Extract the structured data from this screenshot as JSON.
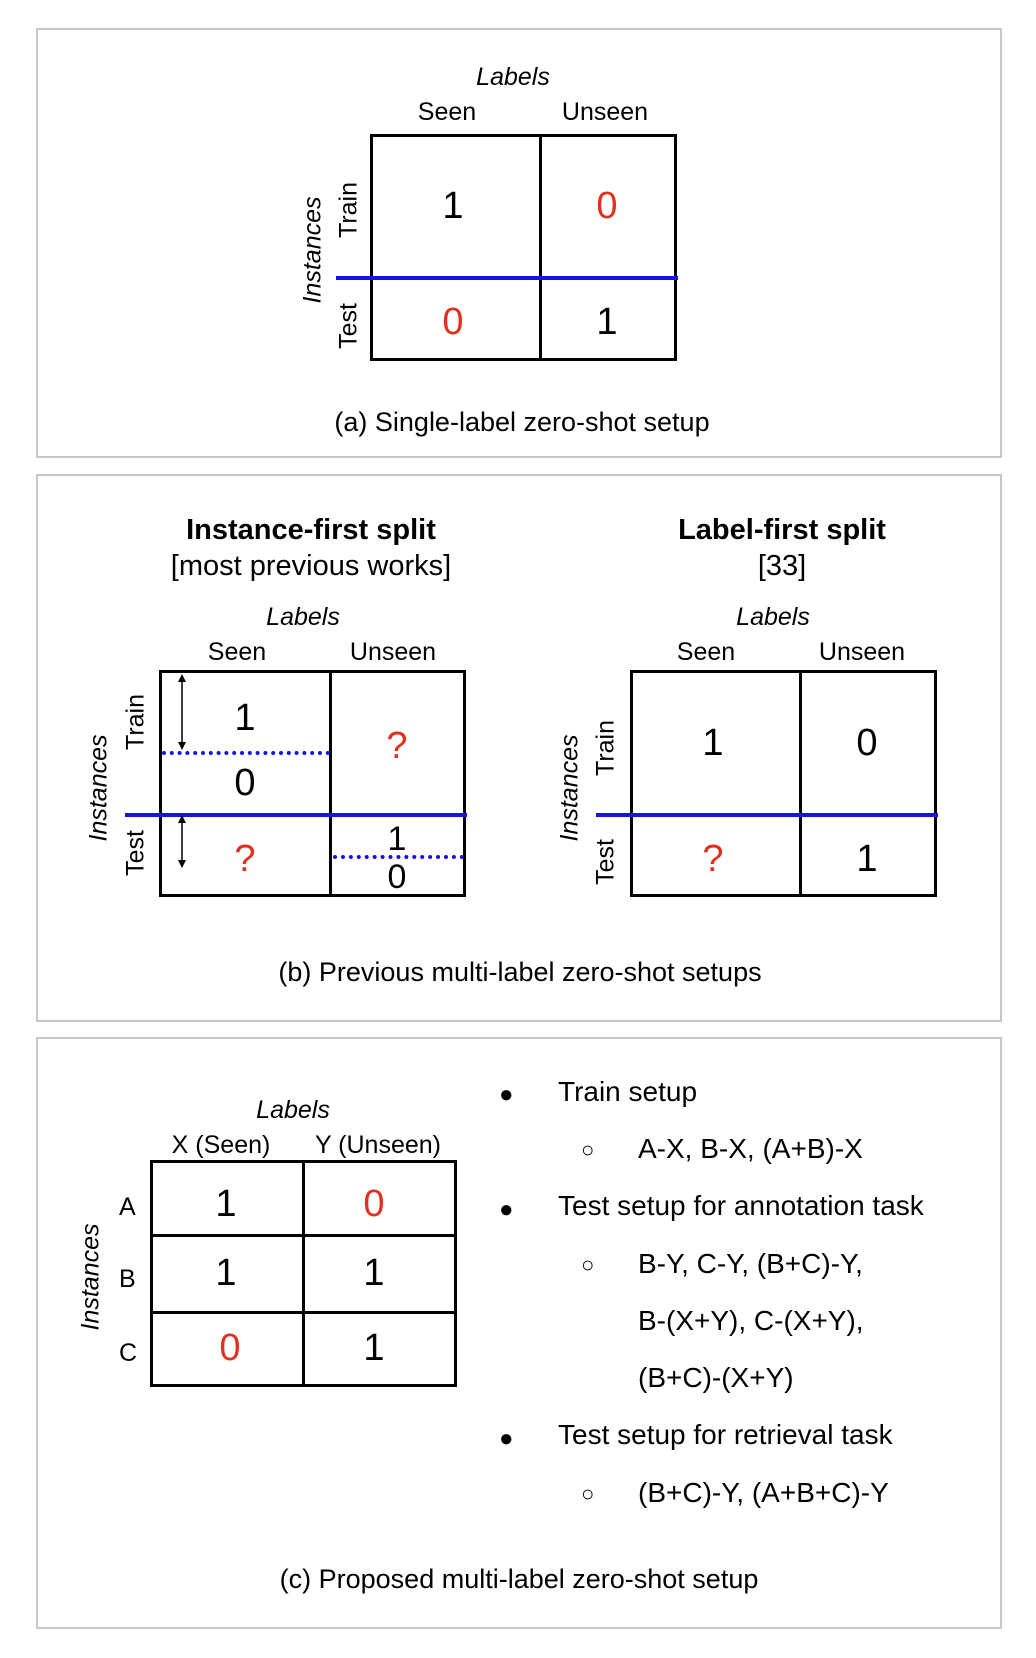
{
  "panel_a": {
    "labels_title": "Labels",
    "col_seen": "Seen",
    "col_unseen": "Unseen",
    "row_axis": "Instances",
    "row_train": "Train",
    "row_test": "Test",
    "cells": {
      "train_seen": "1",
      "train_unseen": "0",
      "test_seen": "0",
      "test_unseen": "1"
    },
    "caption": "(a) Single-label zero-shot setup"
  },
  "panel_b": {
    "left": {
      "title": "Instance-first split",
      "subtitle": "[most previous works]",
      "labels_title": "Labels",
      "col_seen": "Seen",
      "col_unseen": "Unseen",
      "row_axis": "Instances",
      "row_train": "Train",
      "row_test": "Test",
      "cells": {
        "train_seen_top": "1",
        "train_seen_bottom": "0",
        "train_unseen": "?",
        "test_seen": "?",
        "test_unseen_top": "1",
        "test_unseen_bottom": "0"
      }
    },
    "right": {
      "title": "Label-first split",
      "subtitle": "[33]",
      "labels_title": "Labels",
      "col_seen": "Seen",
      "col_unseen": "Unseen",
      "row_axis": "Instances",
      "row_train": "Train",
      "row_test": "Test",
      "cells": {
        "train_seen": "1",
        "train_unseen": "0",
        "test_seen": "?",
        "test_unseen": "1"
      }
    },
    "caption": "(b) Previous multi-label zero-shot setups"
  },
  "panel_c": {
    "labels_title": "Labels",
    "col_x": "X (Seen)",
    "col_y": "Y (Unseen)",
    "row_axis": "Instances",
    "rows": [
      "A",
      "B",
      "C"
    ],
    "cells": [
      [
        "1",
        "0"
      ],
      [
        "1",
        "1"
      ],
      [
        "0",
        "1"
      ]
    ],
    "bullets": {
      "train": "Train setup",
      "train_sub": "A-X, B-X, (A+B)-X",
      "annot": "Test setup for annotation task",
      "annot_sub_1": "B-Y, C-Y, (B+C)-Y,",
      "annot_sub_2": "B-(X+Y), C-(X+Y),",
      "annot_sub_3": "(B+C)-(X+Y)",
      "retr": "Test setup for retrieval task",
      "retr_sub": "(B+C)-Y, (A+B+C)-Y"
    },
    "caption": "(c) Proposed multi-label zero-shot setup"
  },
  "colors": {
    "line_blue": "#1414e6",
    "red_value": "#e0301e",
    "panel_border": "#c8c8c8"
  }
}
